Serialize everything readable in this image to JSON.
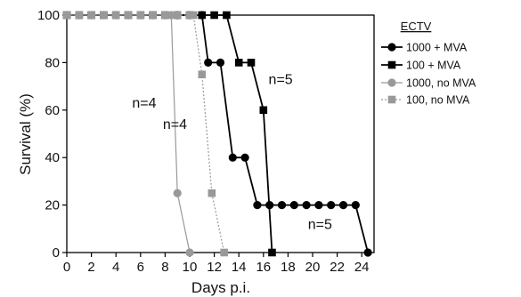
{
  "chart_data": {
    "type": "line",
    "xlabel": "Days p.i.",
    "ylabel": "Survival (%)",
    "xlim": [
      0,
      25
    ],
    "ylim": [
      0,
      100
    ],
    "x_ticks": [
      0,
      2,
      4,
      6,
      8,
      10,
      12,
      14,
      16,
      18,
      20,
      22,
      24
    ],
    "y_ticks": [
      0,
      20,
      40,
      60,
      80,
      100
    ],
    "grid": false,
    "legend": {
      "title": "ECTV",
      "placement": "top-right",
      "entries": [
        "1000 + MVA",
        "100 + MVA",
        "1000, no MVA",
        "100, no MVA"
      ]
    },
    "series": [
      {
        "name": "1000 + MVA",
        "color": "#000000",
        "marker": "circle",
        "line": "solid",
        "points": [
          [
            0,
            100
          ],
          [
            1,
            100
          ],
          [
            2,
            100
          ],
          [
            3,
            100
          ],
          [
            4,
            100
          ],
          [
            5,
            100
          ],
          [
            6,
            100
          ],
          [
            7,
            100
          ],
          [
            8,
            100
          ],
          [
            9,
            100
          ],
          [
            10,
            100
          ],
          [
            11,
            100
          ],
          [
            11.5,
            80
          ],
          [
            12.5,
            80
          ],
          [
            13.5,
            40
          ],
          [
            14.5,
            40
          ],
          [
            15.5,
            20
          ],
          [
            16.5,
            20
          ],
          [
            17.5,
            20
          ],
          [
            18.5,
            20
          ],
          [
            19.5,
            20
          ],
          [
            20.5,
            20
          ],
          [
            21.5,
            20
          ],
          [
            22.5,
            20
          ],
          [
            23.5,
            20
          ],
          [
            24.5,
            0
          ]
        ]
      },
      {
        "name": "100 + MVA",
        "color": "#000000",
        "marker": "square",
        "line": "solid",
        "points": [
          [
            0,
            100
          ],
          [
            1,
            100
          ],
          [
            2,
            100
          ],
          [
            3,
            100
          ],
          [
            4,
            100
          ],
          [
            5,
            100
          ],
          [
            6,
            100
          ],
          [
            7,
            100
          ],
          [
            8,
            100
          ],
          [
            9,
            100
          ],
          [
            10,
            100
          ],
          [
            11,
            100
          ],
          [
            12,
            100
          ],
          [
            13,
            100
          ],
          [
            14,
            80
          ],
          [
            15,
            80
          ],
          [
            16,
            60
          ],
          [
            16.7,
            0
          ]
        ]
      },
      {
        "name": "1000, no MVA",
        "color": "#999999",
        "marker": "circle",
        "line": "solid",
        "points": [
          [
            0,
            100
          ],
          [
            1,
            100
          ],
          [
            2,
            100
          ],
          [
            3,
            100
          ],
          [
            4,
            100
          ],
          [
            5,
            100
          ],
          [
            6,
            100
          ],
          [
            7,
            100
          ],
          [
            8,
            100
          ],
          [
            8.5,
            100
          ],
          [
            9,
            25
          ],
          [
            10,
            0
          ]
        ]
      },
      {
        "name": "100, no MVA",
        "color": "#999999",
        "marker": "square",
        "line": "dotted",
        "points": [
          [
            0,
            100
          ],
          [
            1,
            100
          ],
          [
            2,
            100
          ],
          [
            3,
            100
          ],
          [
            4,
            100
          ],
          [
            5,
            100
          ],
          [
            6,
            100
          ],
          [
            7,
            100
          ],
          [
            8,
            100
          ],
          [
            9,
            100
          ],
          [
            10,
            100
          ],
          [
            10.3,
            100
          ],
          [
            11,
            75
          ],
          [
            11.8,
            25
          ],
          [
            12.8,
            0
          ]
        ]
      }
    ],
    "annotations": [
      {
        "text": "n=4",
        "x": 6.3,
        "y": 61
      },
      {
        "text": "n=4",
        "x": 8.8,
        "y": 52
      },
      {
        "text": "n=5",
        "x": 17.4,
        "y": 71
      },
      {
        "text": "n=5",
        "x": 20.6,
        "y": 10
      }
    ]
  }
}
